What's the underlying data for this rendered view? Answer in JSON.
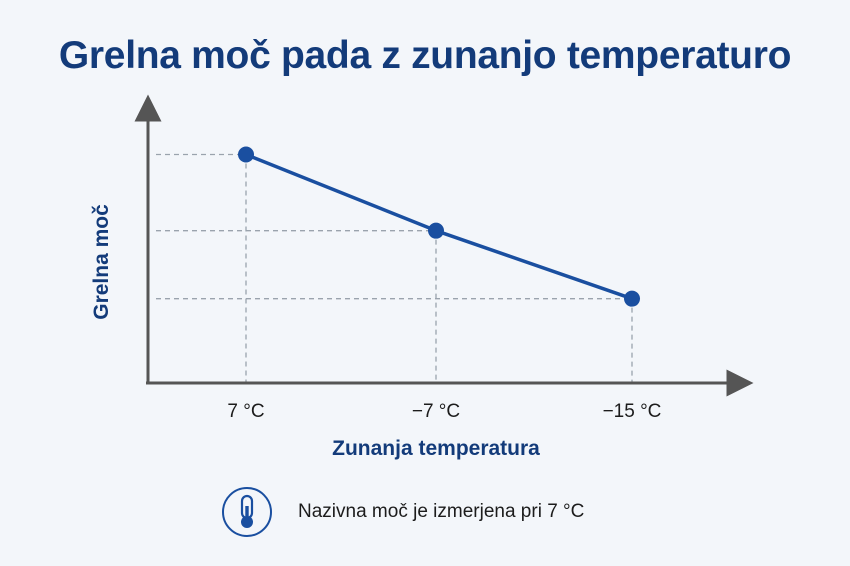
{
  "title": "Grelna moč pada z zunanjo temperaturo",
  "chart_data": {
    "type": "line",
    "title": "Grelna moč pada z zunanjo temperaturo",
    "xlabel": "Zunanja temperatura",
    "ylabel": "Grelna moč",
    "categories": [
      "7 °C",
      "−7 °C",
      "−15 °C"
    ],
    "series": [
      {
        "values": [
          0.84,
          0.56,
          0.31
        ]
      }
    ],
    "ylim": [
      0,
      1
    ],
    "grid": "dashed guides to each point",
    "line_color": "#1a4fa0",
    "axis_color": "#555555"
  },
  "note": {
    "icon": "thermometer-icon",
    "text": "Nazivna moč je izmerjena pri 7 °C"
  }
}
